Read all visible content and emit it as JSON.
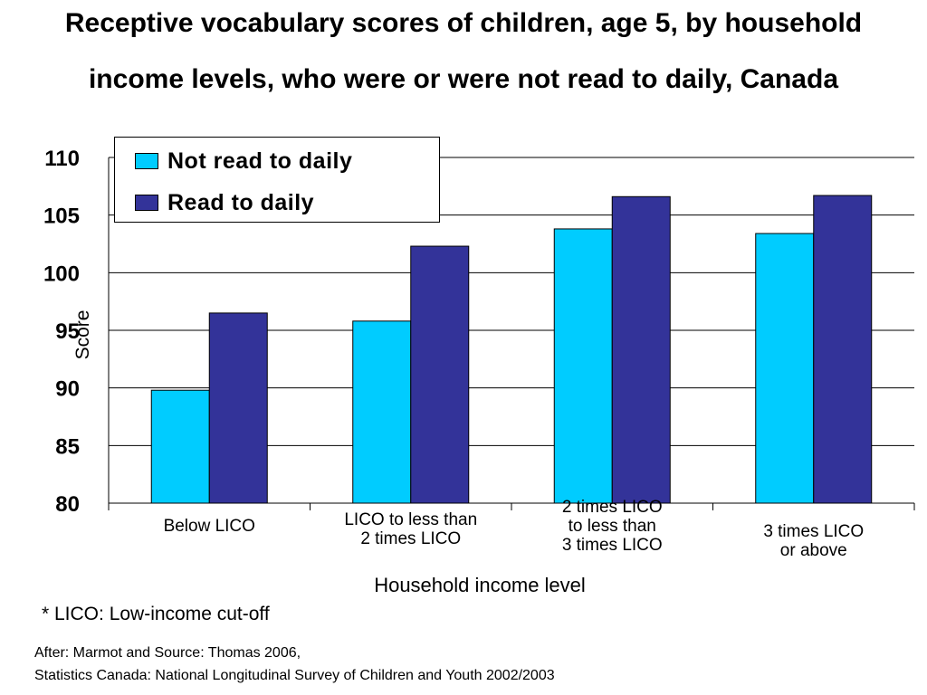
{
  "title_line1": "Receptive vocabulary scores of children, age 5, by household",
  "title_line2": "income levels, who were or were not read to daily, Canada",
  "colors": {
    "not_read": "#00CCFF",
    "read": "#333399"
  },
  "chart_data": {
    "type": "bar",
    "categories": [
      "Below LICO",
      "LICO to less than\n2 times LICO",
      "2 times LICO\nto less than\n3 times LICO",
      "3 times LICO\nor above"
    ],
    "series": [
      {
        "name": "Not read to daily",
        "values": [
          89.8,
          95.8,
          103.8,
          103.4
        ]
      },
      {
        "name": "Read to daily",
        "values": [
          96.5,
          102.3,
          106.6,
          106.7
        ]
      }
    ],
    "ylim": [
      80,
      110
    ],
    "yticks": [
      "80",
      "85",
      "90",
      "95",
      "100",
      "105",
      "110"
    ],
    "xlabel": "Household income level",
    "ylabel": "Score",
    "grid": true,
    "legend_position": "top-left"
  },
  "footnote": "* LICO: Low-income cut-off",
  "source_line1": "After: Marmot and Source: Thomas 2006,",
  "source_line2": "Statistics Canada: National Longitudinal Survey of Children and Youth 2002/2003"
}
